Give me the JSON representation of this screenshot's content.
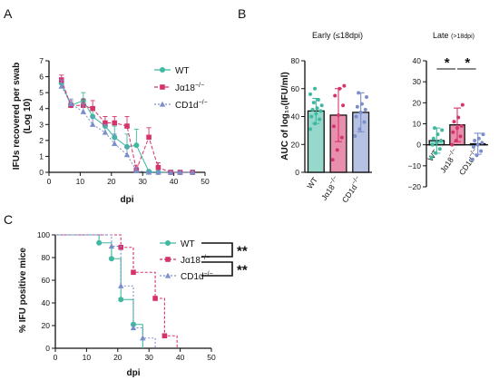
{
  "colors": {
    "wt": "#3fb8a0",
    "ja18": "#d6336c",
    "cd1d": "#7b8ecc",
    "axis": "#111111"
  },
  "chart_data": [
    {
      "id": "A",
      "type": "line",
      "panel_label": "A",
      "xlabel": "dpi",
      "ylabel": "IFUs recovered per swab (Log 10)",
      "ylabel_lines": [
        "IFUs recovered per swab",
        "(Log 10)"
      ],
      "xlim": [
        0,
        50
      ],
      "ylim": [
        0,
        7
      ],
      "xticks": [
        "0",
        "10",
        "20",
        "30",
        "40",
        "50"
      ],
      "yticks": [
        "0",
        "1",
        "2",
        "3",
        "4",
        "5",
        "6",
        "7"
      ],
      "legend": "right",
      "series": [
        {
          "name": "WT",
          "sup": "",
          "color_key": "wt",
          "marker": "circle",
          "dash": "solid",
          "x": [
            4,
            7,
            11,
            14,
            18,
            21,
            25,
            28,
            32,
            35,
            39,
            42,
            46
          ],
          "y": [
            5.6,
            4.2,
            4.5,
            3.5,
            2.9,
            2.2,
            1.6,
            1.7,
            0.05,
            0.0,
            0.0,
            0.0,
            0.0
          ],
          "err": [
            0.3,
            0.2,
            0.5,
            0.5,
            0.6,
            0.7,
            0.8,
            1.0,
            0.1,
            0.0,
            0.0,
            0.0,
            0.0
          ]
        },
        {
          "name": "Jα18",
          "sup": "−/−",
          "color_key": "ja18",
          "marker": "square",
          "dash": "4,2",
          "x": [
            4,
            7,
            11,
            14,
            18,
            21,
            25,
            28,
            32,
            35,
            39,
            42,
            46
          ],
          "y": [
            5.8,
            4.2,
            4.2,
            4.0,
            3.1,
            3.1,
            2.9,
            0.15,
            2.2,
            0.3,
            0.0,
            0.0,
            0.0
          ],
          "err": [
            0.3,
            0.3,
            0.4,
            0.5,
            0.4,
            0.4,
            0.6,
            0.3,
            0.6,
            0.3,
            0.0,
            0.0,
            0.0
          ]
        },
        {
          "name": "CD1d",
          "sup": "−/−",
          "color_key": "cd1d",
          "marker": "triangle",
          "dash": "2,2",
          "x": [
            4,
            7,
            11,
            14,
            18,
            21,
            25,
            28,
            32,
            35,
            39,
            42,
            46
          ],
          "y": [
            5.4,
            4.3,
            3.8,
            3.0,
            2.5,
            1.8,
            1.1,
            0.1,
            0.0,
            0.0,
            0.0,
            0.0,
            0.0
          ],
          "err": [
            0.4,
            0.3,
            0.5,
            0.5,
            0.5,
            0.6,
            0.5,
            0.2,
            0.0,
            0.0,
            0.0,
            0.0,
            0.0
          ]
        }
      ]
    },
    {
      "id": "B1",
      "type": "bar",
      "panel_label": "B",
      "title": "Early (≤18dpi)",
      "ylabel": "AUC of log₁₀(IFU/ml)",
      "ylim": [
        0,
        80
      ],
      "yticks": [
        "0",
        "20",
        "40",
        "60",
        "80"
      ],
      "categories": [
        "WT",
        "Jα18",
        "CD1d"
      ],
      "category_sup": [
        "",
        "−/−",
        "−/−"
      ],
      "color_keys": [
        "wt",
        "ja18",
        "cd1d"
      ],
      "values": [
        44,
        41,
        43
      ],
      "sd": [
        9,
        19,
        14
      ],
      "points": [
        [
          31,
          35,
          38,
          40,
          42,
          44,
          45,
          46,
          48,
          50,
          52,
          56,
          60
        ],
        [
          9,
          16,
          25,
          33,
          41,
          48,
          55,
          60,
          62
        ],
        [
          26,
          31,
          36,
          40,
          43,
          45,
          47,
          49,
          54,
          57
        ]
      ]
    },
    {
      "id": "B2",
      "type": "bar",
      "title": "Late",
      "title_suffix": "(>18dpi)",
      "ylim": [
        -20,
        40
      ],
      "yticks": [
        "−20",
        "−10",
        "0",
        "10",
        "20",
        "30",
        "40"
      ],
      "categories": [
        "WT",
        "Jα18",
        "CD1d"
      ],
      "category_sup": [
        "",
        "−/−",
        "−/−"
      ],
      "color_keys": [
        "wt",
        "ja18",
        "cd1d"
      ],
      "values": [
        2,
        9.5,
        0.5
      ],
      "sd": [
        6,
        8,
        5
      ],
      "points": [
        [
          -6,
          -4,
          -2,
          0,
          1,
          2,
          3,
          5,
          7,
          8
        ],
        [
          0,
          2,
          4,
          6,
          8,
          9,
          11,
          13,
          19
        ],
        [
          -7,
          -5,
          -3,
          -1,
          0,
          1,
          2,
          3,
          5
        ]
      ],
      "significance": [
        {
          "from": 0,
          "to": 1,
          "label": "*"
        },
        {
          "from": 1,
          "to": 2,
          "label": "*"
        }
      ]
    },
    {
      "id": "C",
      "type": "line",
      "subtype": "survival-step",
      "panel_label": "C",
      "xlabel": "dpi",
      "ylabel": "% IFU positive mice",
      "xlim": [
        0,
        50
      ],
      "ylim": [
        0,
        100
      ],
      "xticks": [
        "0",
        "10",
        "20",
        "30",
        "40",
        "50"
      ],
      "yticks": [
        "0",
        "20",
        "40",
        "60",
        "80",
        "100"
      ],
      "legend": "right",
      "series": [
        {
          "name": "WT",
          "sup": "",
          "color_key": "wt",
          "marker": "circle",
          "dash": "solid",
          "x": [
            0,
            14,
            18,
            21,
            25,
            28
          ],
          "y": [
            100,
            93,
            79,
            43,
            21,
            0
          ]
        },
        {
          "name": "Jα18",
          "sup": "−/−",
          "color_key": "ja18",
          "marker": "square",
          "dash": "3,2",
          "x": [
            0,
            21,
            25,
            32,
            35,
            39
          ],
          "y": [
            100,
            89,
            67,
            44,
            11,
            0
          ]
        },
        {
          "name": "CD1d",
          "sup": "−/−",
          "color_key": "cd1d",
          "marker": "triangle",
          "dash": "2,2",
          "x": [
            0,
            18,
            21,
            25,
            28,
            32
          ],
          "y": [
            100,
            90,
            55,
            18,
            9,
            0
          ]
        }
      ],
      "significance": [
        {
          "from": 0,
          "to": 1,
          "label": "**"
        },
        {
          "from": 1,
          "to": 2,
          "label": "**"
        }
      ]
    }
  ]
}
